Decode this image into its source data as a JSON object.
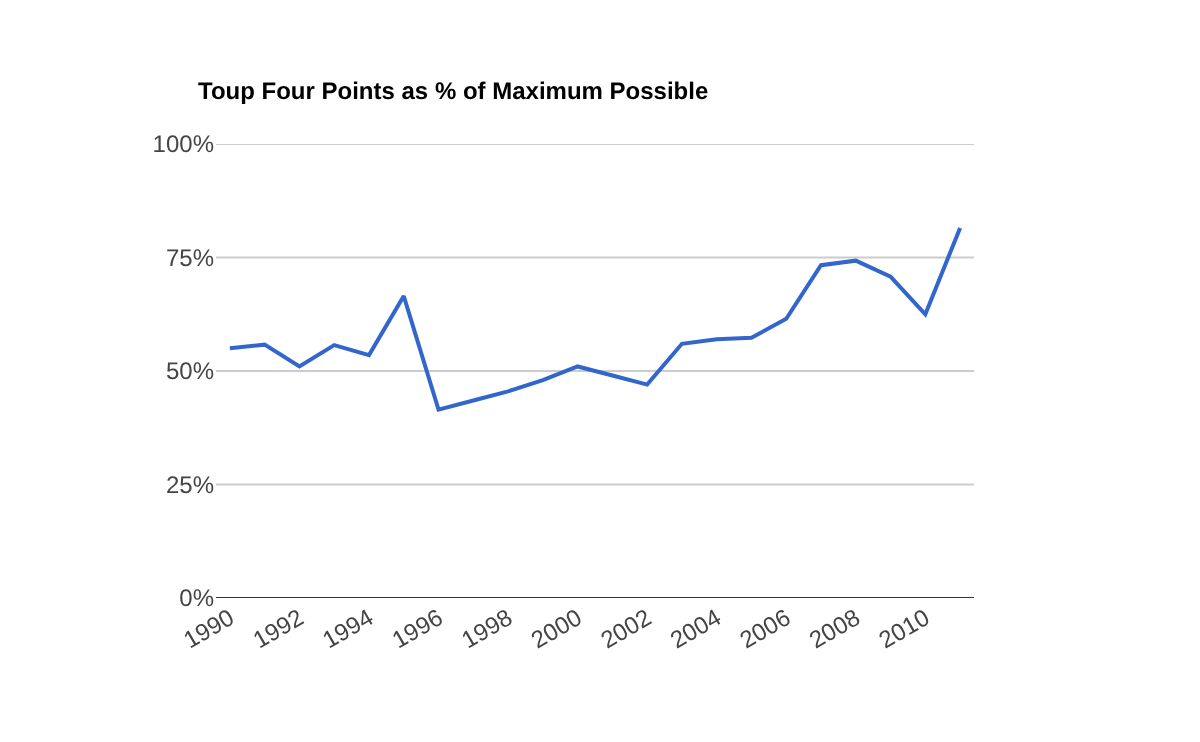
{
  "chart_data": {
    "type": "line",
    "title": "Toup Four Points as % of Maximum Possible",
    "categories": [
      "1990",
      null,
      "1992",
      null,
      "1994",
      null,
      "1996",
      null,
      "1998",
      null,
      "2000",
      null,
      "2002",
      null,
      "2004",
      null,
      "2006",
      null,
      "2008",
      null,
      "2010",
      null
    ],
    "series": [
      {
        "color": "#3366cc",
        "values": [
          55,
          55.8,
          51,
          55.7,
          53.5,
          66.5,
          41.5,
          43.5,
          45.5,
          48,
          51,
          49,
          47,
          56,
          57,
          57.3,
          61.5,
          73.3,
          74.3,
          70.8,
          62.5,
          81.5
        ]
      }
    ],
    "ylim": [
      0,
      100
    ],
    "yticks": [
      {
        "value": 0,
        "label": "0%"
      },
      {
        "value": 25,
        "label": "25%"
      },
      {
        "value": 50,
        "label": "50%"
      },
      {
        "value": 75,
        "label": "75%"
      },
      {
        "value": 100,
        "label": "100%"
      }
    ],
    "grid": "y",
    "marker": "none",
    "line_style": "solid"
  }
}
